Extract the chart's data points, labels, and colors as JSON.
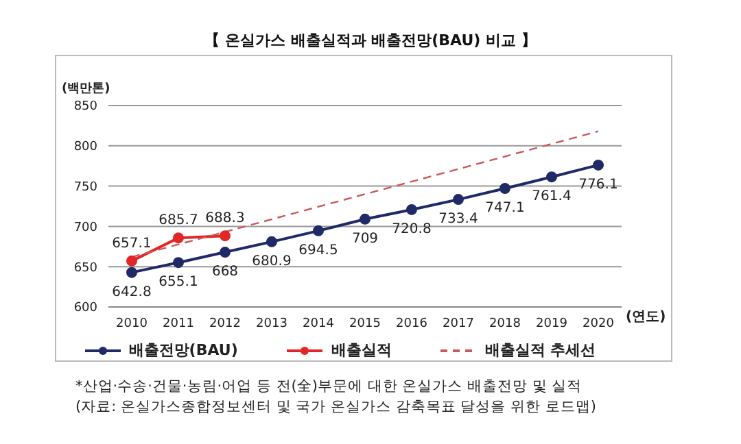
{
  "chart_data": {
    "type": "line",
    "title": "【 온실가스 배출실적과 배출전망(BAU) 비교 】",
    "ylabel": "(백만톤)",
    "xlabel": "(연도)",
    "x": [
      2010,
      2011,
      2012,
      2013,
      2014,
      2015,
      2016,
      2017,
      2018,
      2019,
      2020
    ],
    "xlim": [
      2009.5,
      2020.5
    ],
    "xticks": [
      2010,
      2011,
      2012,
      2013,
      2014,
      2015,
      2016,
      2017,
      2018,
      2019,
      2020
    ],
    "ylim": [
      600,
      850
    ],
    "yticks": [
      600,
      650,
      700,
      750,
      800,
      850
    ],
    "grid": "y",
    "legend": "bottom",
    "series": [
      {
        "name": "배출전망(BAU)",
        "color": "#1f2a66",
        "marker": "circle",
        "values": [
          642.8,
          655.1,
          668,
          680.9,
          694.5,
          709,
          720.8,
          733.4,
          747.1,
          761.4,
          776.1
        ],
        "value_labels": [
          "642.8",
          "655.1",
          "668",
          "680.9",
          "694.5",
          "709",
          "720.8",
          "733.4",
          "747.1",
          "761.4",
          "776.1"
        ]
      },
      {
        "name": "배출실적",
        "color": "#e32626",
        "marker": "circle",
        "values": [
          657.1,
          685.7,
          688.3,
          null,
          null,
          null,
          null,
          null,
          null,
          null,
          null
        ],
        "value_labels": [
          "657.1",
          "685.7",
          "688.3",
          null,
          null,
          null,
          null,
          null,
          null,
          null,
          null
        ]
      },
      {
        "name": "배출실적 추세선",
        "color": "#c85a5a",
        "marker": "none",
        "line_style": "dashed",
        "x": [
          2010,
          2020
        ],
        "values": [
          662,
          818
        ]
      }
    ],
    "annotations": [
      "*산업·수송·건물·농림·어업 등 전(全)부문에 대한 온실가스 배출전망 및 실적",
      "(자료: 온실가스종합정보센터 및 국가 온실가스 감축목표 달성을 위한 로드맵)"
    ]
  }
}
